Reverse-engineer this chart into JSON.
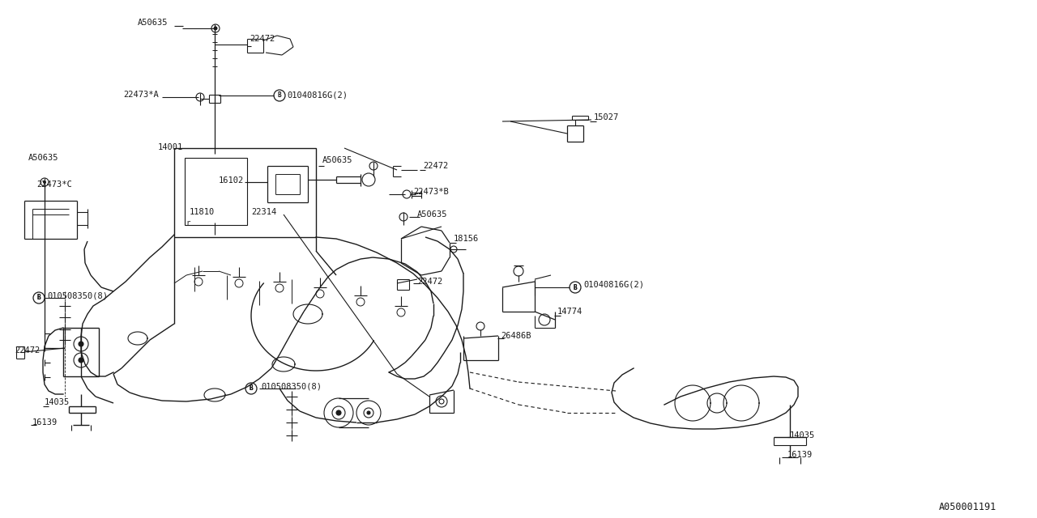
{
  "bg_color": "#ffffff",
  "line_color": "#1a1a1a",
  "font_family": "monospace",
  "font_size": 7.5,
  "diagram_label": "A050001191",
  "fig_w": 12.8,
  "fig_h": 6.4,
  "dpi": 100,
  "xlim": [
    0,
    1280
  ],
  "ylim": [
    0,
    640
  ]
}
